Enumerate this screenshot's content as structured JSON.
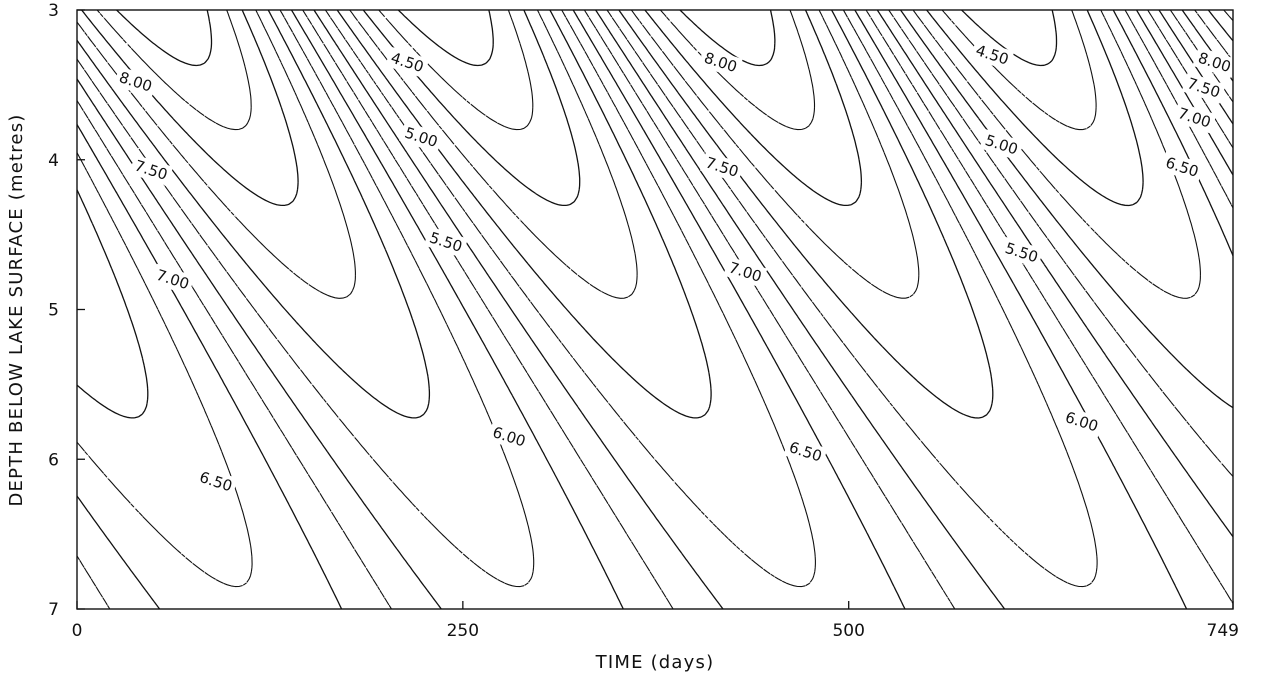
{
  "chart_data": {
    "type": "contour",
    "xlabel": "TIME (days)",
    "ylabel": "DEPTH BELOW LAKE SURFACE (metres)",
    "xlim": [
      0,
      749
    ],
    "ylim": [
      3,
      7
    ],
    "y_inverted": true,
    "x_ticks": [
      "0",
      "250",
      "500",
      "749"
    ],
    "y_ticks": [
      "3",
      "4",
      "5",
      "6",
      "7"
    ],
    "grid": false,
    "contour_levels": [
      4.5,
      5.0,
      5.5,
      6.0,
      6.5,
      7.0,
      7.5,
      8.0
    ],
    "dashed_levels": [
      4.75,
      5.25,
      5.75,
      6.25,
      6.75,
      7.25,
      7.75
    ],
    "contour_labels": [
      {
        "text": "8.00",
        "x": 38,
        "y": 3.48
      },
      {
        "text": "7.50",
        "x": 48,
        "y": 4.07
      },
      {
        "text": "7.00",
        "x": 62,
        "y": 4.8
      },
      {
        "text": "6.50",
        "x": 90,
        "y": 6.15
      },
      {
        "text": "4.50",
        "x": 214,
        "y": 3.35
      },
      {
        "text": "5.00",
        "x": 223,
        "y": 3.85
      },
      {
        "text": "5.50",
        "x": 239,
        "y": 4.55
      },
      {
        "text": "6.00",
        "x": 280,
        "y": 5.85
      },
      {
        "text": "8.00",
        "x": 417,
        "y": 3.35
      },
      {
        "text": "7.50",
        "x": 418,
        "y": 4.05
      },
      {
        "text": "7.00",
        "x": 433,
        "y": 4.75
      },
      {
        "text": "6.50",
        "x": 472,
        "y": 5.95
      },
      {
        "text": "4.50",
        "x": 593,
        "y": 3.3
      },
      {
        "text": "5.00",
        "x": 599,
        "y": 3.9
      },
      {
        "text": "5.50",
        "x": 612,
        "y": 4.62
      },
      {
        "text": "6.00",
        "x": 651,
        "y": 5.75
      },
      {
        "text": "8.00",
        "x": 737,
        "y": 3.35
      },
      {
        "text": "7.50",
        "x": 730,
        "y": 3.52
      },
      {
        "text": "7.00",
        "x": 724,
        "y": 3.72
      },
      {
        "text": "6.50",
        "x": 716,
        "y": 4.05
      }
    ]
  }
}
